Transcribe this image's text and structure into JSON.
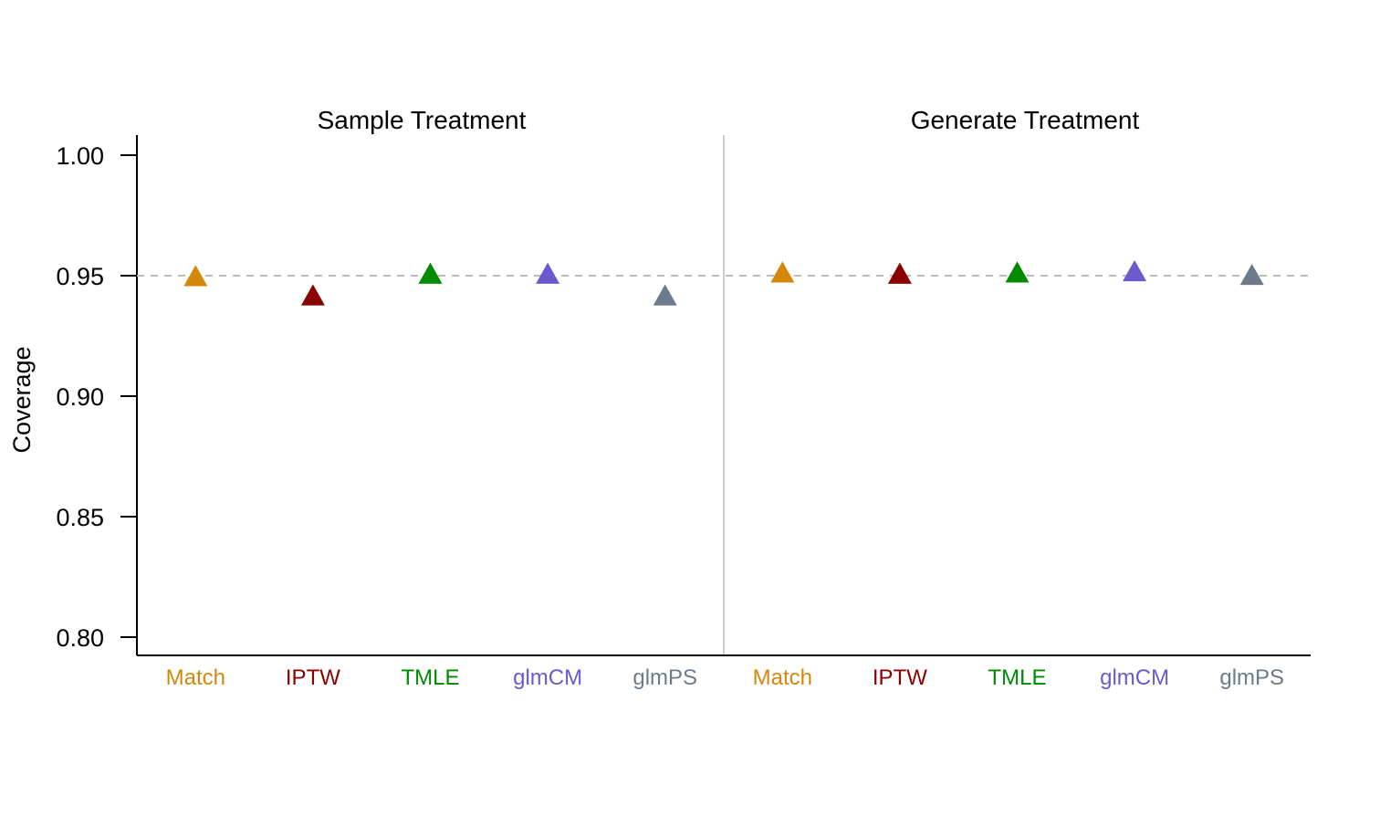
{
  "chart_data": {
    "type": "scatter",
    "ylabel": "Coverage",
    "ylim": [
      0.8,
      1.0
    ],
    "yticks": [
      "0.80",
      "0.85",
      "0.90",
      "0.95",
      "1.00"
    ],
    "highlight_tick": "0.95",
    "reference_line": 0.95,
    "marker": "triangle",
    "grid": false,
    "categories": [
      "Match",
      "IPTW",
      "TMLE",
      "glmCM",
      "glmPS"
    ],
    "category_colors": {
      "Match": "#D4870A",
      "IPTW": "#8B0000",
      "TMLE": "#008B00",
      "glmCM": "#6A5ACD",
      "glmPS": "#6C7B8B"
    },
    "colors": {
      "reference_line": "#BBBBBB",
      "highlight_tick": "#999999",
      "facet_divider": "#CCCCCC",
      "axis": "#000000"
    },
    "facets": [
      {
        "title": "Sample Treatment",
        "values": [
          0.9495,
          0.9415,
          0.9505,
          0.9505,
          0.9415
        ]
      },
      {
        "title": "Generate Treatment",
        "values": [
          0.951,
          0.9505,
          0.951,
          0.9515,
          0.95
        ]
      }
    ]
  }
}
